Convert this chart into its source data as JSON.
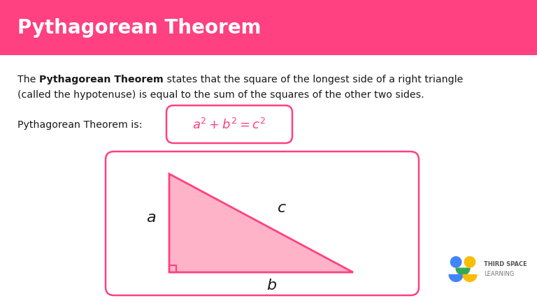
{
  "title": "Pythagorean Theorem",
  "title_bg_color": "#FF4081",
  "title_text_color": "#FFFFFF",
  "body_bg_color": "#FFFFFF",
  "pink_color": "#FF4081",
  "light_pink_fill": "#FFB3C8",
  "label_left": "Pythagorean Theorem is:",
  "triangle_label_a": "a",
  "triangle_label_b": "b",
  "triangle_label_c": "c",
  "logo_text1": "THIRD SPACE",
  "logo_text2": "LEARNING",
  "fig_width": 7.68,
  "fig_height": 4.35,
  "dpi": 100
}
